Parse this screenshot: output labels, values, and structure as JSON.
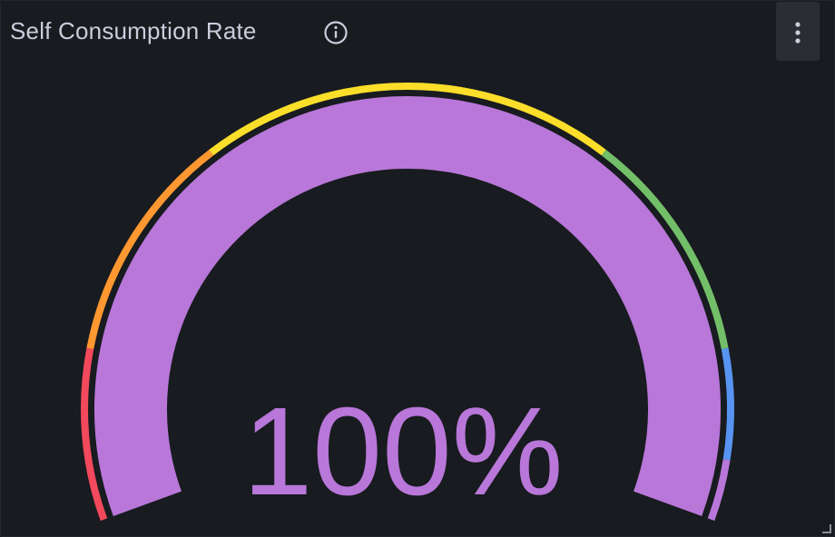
{
  "panel": {
    "title": "Self Consumption Rate",
    "info_icon": "info-circle-icon",
    "menu_icon": "kebab-menu-icon"
  },
  "gauge": {
    "value": 100,
    "display_value": "100%",
    "min": 0,
    "max": 100,
    "fill_color": "#b877d9",
    "threshold_steps": [
      {
        "color": "#f2495c",
        "from": 0,
        "to": 14
      },
      {
        "color": "#ff9830",
        "from": 14,
        "to": 33
      },
      {
        "color": "#fade2a",
        "from": 33,
        "to": 67
      },
      {
        "color": "#73bf69",
        "from": 67,
        "to": 86
      },
      {
        "color": "#5794f2",
        "from": 86,
        "to": 95
      },
      {
        "color": "#b877d9",
        "from": 95,
        "to": 100
      }
    ]
  },
  "theme": {
    "background": "#181b1f",
    "text": "#ccccdc"
  }
}
